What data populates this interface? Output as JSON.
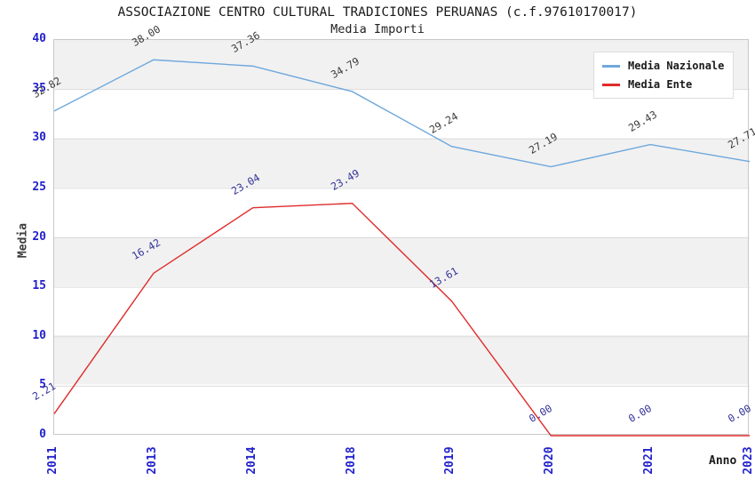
{
  "chart_data": {
    "type": "line",
    "title": "ASSOCIAZIONE CENTRO CULTURAL TRADICIONES PERUANAS (c.f.97610170017)",
    "subtitle": "Media Importi",
    "xlabel": "Anno",
    "ylabel": "Media",
    "ylim": [
      0,
      40
    ],
    "y_ticks": [
      0,
      5,
      10,
      15,
      20,
      25,
      30,
      35,
      40
    ],
    "categories": [
      "2011",
      "2013",
      "2014",
      "2018",
      "2019",
      "2020",
      "2021",
      "2023"
    ],
    "series": [
      {
        "name": "Media Nazionale",
        "color": "#6fa8dc",
        "label_color": "#3c3c3c",
        "values": [
          32.82,
          38.0,
          37.36,
          34.79,
          29.24,
          27.19,
          29.43,
          27.71
        ]
      },
      {
        "name": "Media Ente",
        "color": "#e02b2b",
        "label_color": "#333399",
        "values": [
          2.21,
          16.42,
          23.04,
          23.49,
          13.61,
          0.0,
          0.0,
          0.0
        ]
      }
    ],
    "tick_color": "#2222cc",
    "grid_color": "#dcdcdc",
    "band_color": "#f1f1f1",
    "border_color": "#c8c8c8",
    "legend_position": "top-right",
    "value_label_rotation_deg": -30,
    "value_label_format": "2-decimals"
  }
}
